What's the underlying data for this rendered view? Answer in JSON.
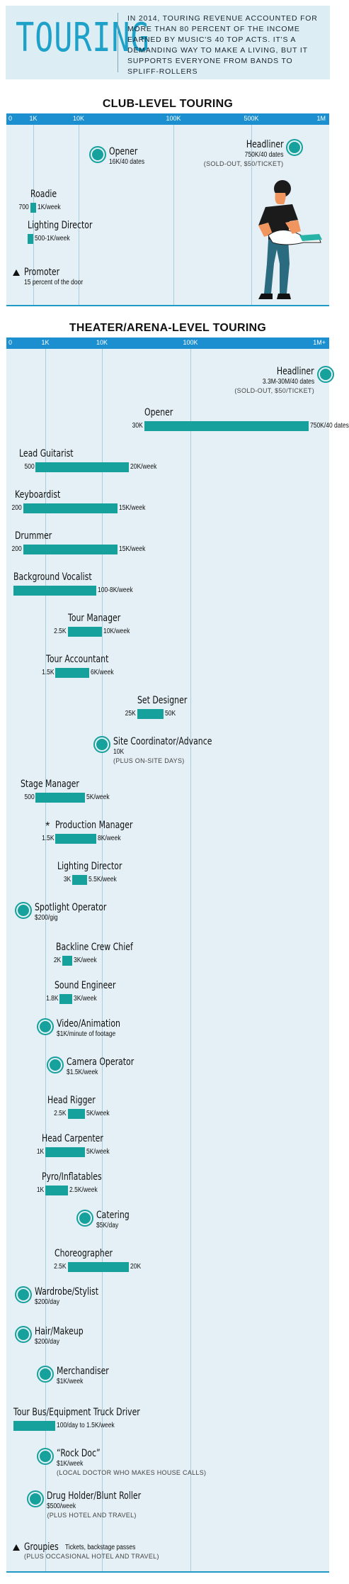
{
  "header": {
    "big_title": "TOURING",
    "intro": "In 2014, touring revenue accounted for more than 80 percent of the income earned by music's 40 top acts. It's a demanding way to make a living, but it supports everyone from bands to spliff-rollers"
  },
  "club": {
    "title": "CLUB-LEVEL TOURING",
    "ticks": [
      "0",
      "1K",
      "10K",
      "100K",
      "500K",
      "1M"
    ]
  },
  "theater": {
    "title": "THEATER/ARENA-LEVEL TOURING",
    "ticks": [
      "0",
      "1K",
      "10K",
      "100K",
      "1M+"
    ]
  },
  "chart_data": [
    {
      "type": "bar",
      "title": "CLUB-LEVEL TOURING",
      "x_scale": "log",
      "x_ticks": [
        "0",
        "1K",
        "10K",
        "100K",
        "500K",
        "1M"
      ],
      "roles": [
        {
          "name": "Opener",
          "kind": "point",
          "value": 16000,
          "label": "16K/40 dates"
        },
        {
          "name": "Headliner",
          "kind": "point",
          "value": 750000,
          "label": "750K/40 dates",
          "note": "(SOLD-OUT, $50/TICKET)"
        },
        {
          "name": "Roadie",
          "kind": "range",
          "low": 700,
          "high": 1000,
          "low_label": "700",
          "high_label": "1K/week"
        },
        {
          "name": "Lighting Director",
          "kind": "range",
          "low": 500,
          "high": 1000,
          "high_label": "500-1K/week"
        },
        {
          "name": "Promoter",
          "kind": "triangle",
          "label": "15 percent of the door"
        }
      ]
    },
    {
      "type": "bar",
      "title": "THEATER/ARENA-LEVEL TOURING",
      "x_scale": "log",
      "x_ticks": [
        "0",
        "1K",
        "10K",
        "100K",
        "1M+"
      ],
      "roles": [
        {
          "name": "Headliner",
          "kind": "point",
          "value": 1000000,
          "label": "3.3M-30M/40 dates",
          "note": "(SOLD-OUT, $50/TICKET)"
        },
        {
          "name": "Opener",
          "kind": "range",
          "low": 30000,
          "high": 750000,
          "low_label": "30K",
          "high_label": "750K/40 dates"
        },
        {
          "name": "Lead Guitarist",
          "kind": "range",
          "low": 500,
          "high": 20000,
          "low_label": "500",
          "high_label": "20K/week"
        },
        {
          "name": "Keyboardist",
          "kind": "range",
          "low": 200,
          "high": 15000,
          "low_label": "200",
          "high_label": "15K/week"
        },
        {
          "name": "Drummer",
          "kind": "range",
          "low": 200,
          "high": 15000,
          "low_label": "200",
          "high_label": "15K/week"
        },
        {
          "name": "Background Vocalist",
          "kind": "range",
          "low": 100,
          "high": 8000,
          "high_label": "100-8K/week"
        },
        {
          "name": "Tour Manager",
          "kind": "range",
          "low": 2500,
          "high": 10000,
          "low_label": "2.5K",
          "high_label": "10K/week"
        },
        {
          "name": "Tour Accountant",
          "kind": "range",
          "low": 1500,
          "high": 6000,
          "low_label": "1.5K",
          "high_label": "6K/week"
        },
        {
          "name": "Set Designer",
          "kind": "range",
          "low": 25000,
          "high": 50000,
          "low_label": "25K",
          "high_label": "50K"
        },
        {
          "name": "Site Coordinator/Advance",
          "kind": "point",
          "value": 10000,
          "label": "10K",
          "note": "(PLUS ON-SITE DAYS)"
        },
        {
          "name": "Stage Manager",
          "kind": "range",
          "low": 500,
          "high": 5000,
          "low_label": "500",
          "high_label": "5K/week"
        },
        {
          "name": "Production Manager",
          "kind": "range",
          "low": 1500,
          "high": 8000,
          "low_label": "1.5K",
          "high_label": "8K/week",
          "symbol": "*"
        },
        {
          "name": "Lighting Director",
          "kind": "range",
          "low": 3000,
          "high": 5500,
          "low_label": "3K",
          "high_label": "5.5K/week"
        },
        {
          "name": "Spotlight Operator",
          "kind": "point",
          "value": 200,
          "label": "$200/gig"
        },
        {
          "name": "Backline Crew Chief",
          "kind": "range",
          "low": 2000,
          "high": 3000,
          "low_label": "2K",
          "high_label": "3K/week"
        },
        {
          "name": "Sound Engineer",
          "kind": "range",
          "low": 1800,
          "high": 3000,
          "low_label": "1.8K",
          "high_label": "3K/week"
        },
        {
          "name": "Video/Animation",
          "kind": "point",
          "value": 1000,
          "label": "$1K/minute of footage"
        },
        {
          "name": "Camera Operator",
          "kind": "point",
          "value": 1500,
          "label": "$1.5K/week"
        },
        {
          "name": "Head Rigger",
          "kind": "range",
          "low": 2500,
          "high": 5000,
          "low_label": "2.5K",
          "high_label": "5K/week"
        },
        {
          "name": "Head Carpenter",
          "kind": "range",
          "low": 1000,
          "high": 5000,
          "low_label": "1K",
          "high_label": "5K/week"
        },
        {
          "name": "Pyro/Inflatables",
          "kind": "range",
          "low": 1000,
          "high": 2500,
          "low_label": "1K",
          "high_label": "2.5K/week"
        },
        {
          "name": "Catering",
          "kind": "point",
          "value": 5000,
          "label": "$5K/day"
        },
        {
          "name": "Choreographer",
          "kind": "range",
          "low": 2500,
          "high": 20000,
          "low_label": "2.5K",
          "high_label": "20K"
        },
        {
          "name": "Wardrobe/Stylist",
          "kind": "point",
          "value": 200,
          "label": "$200/day"
        },
        {
          "name": "Hair/Makeup",
          "kind": "point",
          "value": 200,
          "label": "$200/day"
        },
        {
          "name": "Merchandiser",
          "kind": "point",
          "value": 1000,
          "label": "$1K/week"
        },
        {
          "name": "Tour Bus/Equipment Truck Driver",
          "kind": "range",
          "low": 100,
          "high": 1500,
          "high_label": "100/day to 1.5K/week"
        },
        {
          "name": "“Rock Doc”",
          "kind": "point",
          "value": 1000,
          "label": "$1K/week",
          "note": "(LOCAL DOCTOR WHO MAKES HOUSE CALLS)"
        },
        {
          "name": "Drug Holder/Blunt Roller",
          "kind": "point",
          "value": 500,
          "label": "$500/week",
          "note": "(PLUS HOTEL AND TRAVEL)"
        },
        {
          "name": "Groupies",
          "kind": "triangle",
          "label": "Tickets, backstage passes",
          "note": "(PLUS OCCASIONAL HOTEL AND TRAVEL)"
        }
      ]
    }
  ]
}
